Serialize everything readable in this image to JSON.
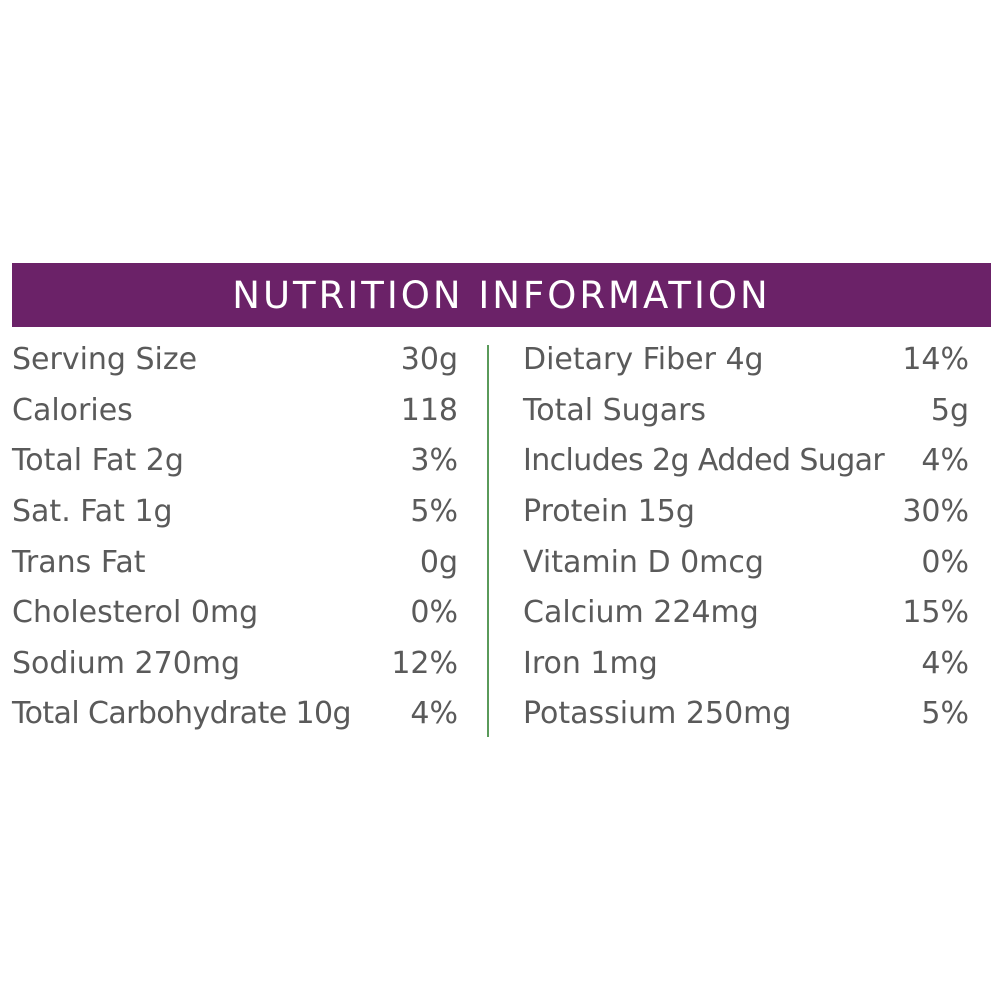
{
  "title": "NUTRITION INFORMATION",
  "colors": {
    "banner": "#6b2268",
    "divider": "#5a9a5a",
    "text": "#5a5a5a"
  },
  "left_column": [
    {
      "label": "Serving Size",
      "value": "30g"
    },
    {
      "label": "Calories",
      "value": "118"
    },
    {
      "label": "Total Fat 2g",
      "value": "3%"
    },
    {
      "label": "Sat. Fat 1g",
      "value": "5%"
    },
    {
      "label": "Trans Fat",
      "value": "0g"
    },
    {
      "label": "Cholesterol 0mg",
      "value": "0%"
    },
    {
      "label": "Sodium 270mg",
      "value": "12%"
    },
    {
      "label": "Total Carbohydrate 10g",
      "value": "4%"
    }
  ],
  "right_column": [
    {
      "label": "Dietary Fiber 4g",
      "value": "14%"
    },
    {
      "label": "Total Sugars",
      "value": "5g"
    },
    {
      "label": "Includes 2g Added Sugar",
      "value": "4%"
    },
    {
      "label": "Protein 15g",
      "value": "30%"
    },
    {
      "label": "Vitamin D 0mcg",
      "value": "0%"
    },
    {
      "label": "Calcium 224mg",
      "value": "15%"
    },
    {
      "label": "Iron 1mg",
      "value": "4%"
    },
    {
      "label": "Potassium 250mg",
      "value": "5%"
    }
  ]
}
